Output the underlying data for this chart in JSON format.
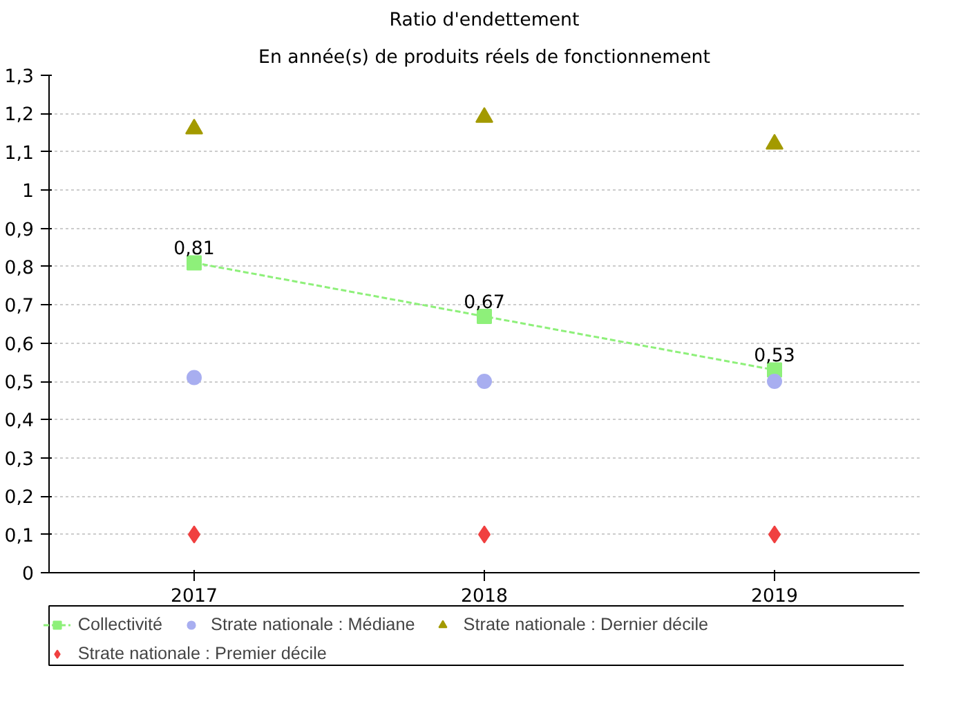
{
  "chart_data": {
    "type": "line",
    "title": "Ratio d'endettement",
    "subtitle": "En année(s) de produits réels de fonctionnement",
    "categories": [
      "2017",
      "2018",
      "2019"
    ],
    "series": [
      {
        "name": "Collectivité",
        "color": "#8ef07a",
        "values": [
          0.81,
          0.67,
          0.53
        ],
        "marker": "square",
        "line_style": "dashed",
        "value_labels": [
          "0,81",
          "0,67",
          "0,53"
        ]
      },
      {
        "name": "Strate nationale : Médiane",
        "color": "#a8aef0",
        "values": [
          0.51,
          0.5,
          0.5
        ],
        "type": "scatter",
        "marker": "circle"
      },
      {
        "name": "Strate nationale : Dernier décile",
        "color": "#a39a00",
        "values": [
          1.16,
          1.19,
          1.12
        ],
        "type": "scatter",
        "marker": "triangle"
      },
      {
        "name": "Strate nationale : Premier décile",
        "color": "#f04040",
        "values": [
          0.1,
          0.1,
          0.1
        ],
        "type": "scatter",
        "marker": "diamond"
      }
    ],
    "ylim": [
      0,
      1.3
    ],
    "yticks": [
      0,
      {
        "value": 0.1,
        "label": "0,1"
      },
      {
        "value": 0.2,
        "label": "0,2"
      },
      {
        "value": 0.3,
        "label": "0,3"
      },
      {
        "value": 0.4,
        "label": "0,4"
      },
      {
        "value": 0.5,
        "label": "0,5"
      },
      {
        "value": 0.6,
        "label": "0,6"
      },
      {
        "value": 0.7,
        "label": "0,7"
      },
      {
        "value": 0.8,
        "label": "0,8"
      },
      {
        "value": 0.9,
        "label": "0,9"
      },
      1,
      {
        "value": 1.1,
        "label": "1,1"
      },
      {
        "value": 1.2,
        "label": "1,2"
      },
      {
        "value": 1.3,
        "label": "1,3"
      }
    ],
    "grid": "y",
    "legend": "bottom"
  }
}
